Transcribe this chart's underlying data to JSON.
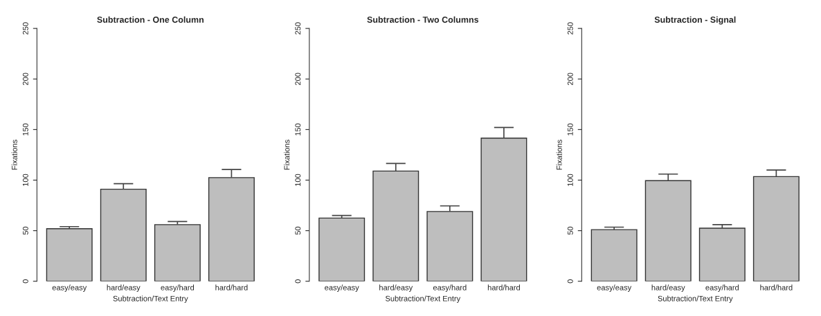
{
  "chart_data": [
    {
      "type": "bar",
      "title": "Subtraction - One Column",
      "xlabel": "Subtraction/Text Entry",
      "ylabel": "Fixations",
      "categories": [
        "easy/easy",
        "hard/easy",
        "easy/hard",
        "hard/hard"
      ],
      "values": [
        52,
        91,
        56,
        102.5
      ],
      "errors": [
        [
          52,
          54
        ],
        [
          91,
          96.5
        ],
        [
          56,
          59
        ],
        [
          102.5,
          110.5
        ]
      ],
      "color": "#bebebe",
      "ylim": [
        0,
        250
      ],
      "yticks": [
        0,
        50,
        100,
        150,
        200,
        250
      ],
      "grid": false
    },
    {
      "type": "bar",
      "title": "Subtraction - Two Columns",
      "xlabel": "Subtraction/Text Entry",
      "ylabel": "Fixations",
      "categories": [
        "easy/easy",
        "hard/easy",
        "easy/hard",
        "hard/hard"
      ],
      "values": [
        62.5,
        109,
        69,
        141.5
      ],
      "errors": [
        [
          62.5,
          65
        ],
        [
          109,
          116.5
        ],
        [
          69,
          74.5
        ],
        [
          141.5,
          152
        ]
      ],
      "color": "#bebebe",
      "ylim": [
        0,
        250
      ],
      "yticks": [
        0,
        50,
        100,
        150,
        200,
        250
      ],
      "grid": false
    },
    {
      "type": "bar",
      "title": "Subtraction - Signal",
      "xlabel": "Subtraction/Text Entry",
      "ylabel": "Fixations",
      "categories": [
        "easy/easy",
        "hard/easy",
        "easy/hard",
        "hard/hard"
      ],
      "values": [
        51,
        99.5,
        52.5,
        103.5
      ],
      "errors": [
        [
          51,
          53.5
        ],
        [
          99.5,
          106
        ],
        [
          52.5,
          56
        ],
        [
          103.5,
          110
        ]
      ],
      "color": "#bebebe",
      "ylim": [
        0,
        250
      ],
      "yticks": [
        0,
        50,
        100,
        150,
        200,
        250
      ],
      "grid": false
    }
  ]
}
